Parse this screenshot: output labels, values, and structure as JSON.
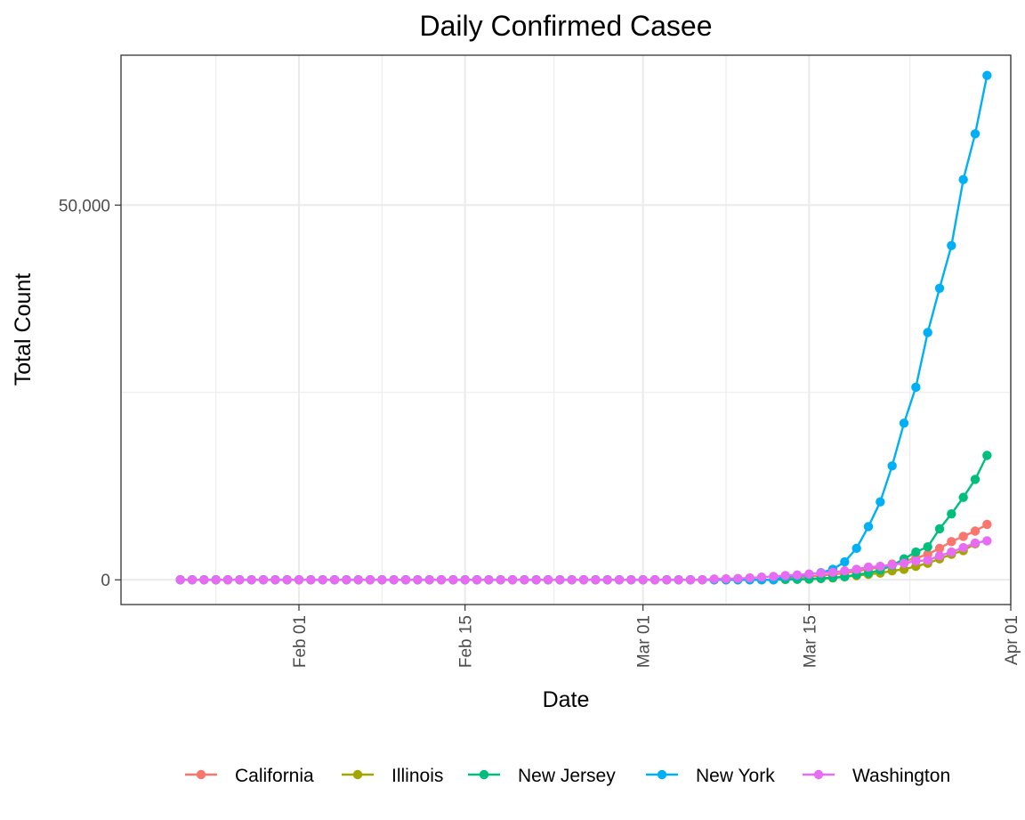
{
  "chart_data": {
    "type": "line",
    "title": "Daily Confirmed Casee",
    "xlabel": "Date",
    "ylabel": "Total Count",
    "x_axis": {
      "type": "date",
      "start": "2020-01-22",
      "end": "2020-03-29",
      "range": [
        "2020-01-17",
        "2020-04-01"
      ],
      "ticks": [
        {
          "date": "2020-02-01",
          "label": "Feb 01"
        },
        {
          "date": "2020-02-15",
          "label": "Feb 15"
        },
        {
          "date": "2020-03-01",
          "label": "Mar 01"
        },
        {
          "date": "2020-03-15",
          "label": "Mar 15"
        },
        {
          "date": "2020-04-01",
          "label": "Apr 01"
        }
      ]
    },
    "y_axis": {
      "range": [
        -3300,
        70000
      ],
      "ticks": [
        {
          "value": 0,
          "label": "0"
        },
        {
          "value": 50000,
          "label": "50,000"
        }
      ],
      "minor_gridlines": [
        25000
      ]
    },
    "grid": true,
    "legend_position": "bottom",
    "colors": {
      "California": "#F8766D",
      "Illinois": "#A3A500",
      "New Jersey": "#00BF7D",
      "New York": "#00B0F6",
      "Washington": "#E76BF3"
    },
    "series": [
      {
        "name": "California",
        "points": [
          [
            "2020-03-13",
            250
          ],
          [
            "2020-03-14",
            340
          ],
          [
            "2020-03-15",
            430
          ],
          [
            "2020-03-16",
            560
          ],
          [
            "2020-03-17",
            700
          ],
          [
            "2020-03-18",
            900
          ],
          [
            "2020-03-19",
            1150
          ],
          [
            "2020-03-20",
            1400
          ],
          [
            "2020-03-21",
            1700
          ],
          [
            "2020-03-22",
            2100
          ],
          [
            "2020-03-23",
            2500
          ],
          [
            "2020-03-24",
            2900
          ],
          [
            "2020-03-25",
            3400
          ],
          [
            "2020-03-26",
            4200
          ],
          [
            "2020-03-27",
            5100
          ],
          [
            "2020-03-28",
            5800
          ],
          [
            "2020-03-29",
            6500
          ],
          [
            "2020-03-30",
            7400
          ]
        ]
      },
      {
        "name": "Illinois",
        "points": [
          [
            "2020-03-13",
            50
          ],
          [
            "2020-03-14",
            70
          ],
          [
            "2020-03-15",
            90
          ],
          [
            "2020-03-16",
            160
          ],
          [
            "2020-03-17",
            240
          ],
          [
            "2020-03-18",
            400
          ],
          [
            "2020-03-19",
            560
          ],
          [
            "2020-03-20",
            720
          ],
          [
            "2020-03-21",
            900
          ],
          [
            "2020-03-22",
            1200
          ],
          [
            "2020-03-23",
            1400
          ],
          [
            "2020-03-24",
            1800
          ],
          [
            "2020-03-25",
            2200
          ],
          [
            "2020-03-26",
            2800
          ],
          [
            "2020-03-27",
            3400
          ],
          [
            "2020-03-28",
            3900
          ],
          [
            "2020-03-29",
            4800
          ]
        ]
      },
      {
        "name": "New Jersey",
        "points": [
          [
            "2020-03-13",
            50
          ],
          [
            "2020-03-14",
            70
          ],
          [
            "2020-03-15",
            100
          ],
          [
            "2020-03-16",
            180
          ],
          [
            "2020-03-17",
            300
          ],
          [
            "2020-03-18",
            400
          ],
          [
            "2020-03-19",
            700
          ],
          [
            "2020-03-20",
            900
          ],
          [
            "2020-03-21",
            1300
          ],
          [
            "2020-03-22",
            1900
          ],
          [
            "2020-03-23",
            2800
          ],
          [
            "2020-03-24",
            3700
          ],
          [
            "2020-03-25",
            4400
          ],
          [
            "2020-03-26",
            6800
          ],
          [
            "2020-03-27",
            8800
          ],
          [
            "2020-03-28",
            11000
          ],
          [
            "2020-03-29",
            13400
          ],
          [
            "2020-03-30",
            16600
          ]
        ]
      },
      {
        "name": "New York",
        "points": [
          [
            "2020-03-13",
            420
          ],
          [
            "2020-03-14",
            520
          ],
          [
            "2020-03-15",
            730
          ],
          [
            "2020-03-16",
            950
          ],
          [
            "2020-03-17",
            1400
          ],
          [
            "2020-03-18",
            2400
          ],
          [
            "2020-03-19",
            4200
          ],
          [
            "2020-03-20",
            7100
          ],
          [
            "2020-03-21",
            10400
          ],
          [
            "2020-03-22",
            15200
          ],
          [
            "2020-03-23",
            20900
          ],
          [
            "2020-03-24",
            25700
          ],
          [
            "2020-03-25",
            33000
          ],
          [
            "2020-03-26",
            38900
          ],
          [
            "2020-03-27",
            44600
          ],
          [
            "2020-03-28",
            53400
          ],
          [
            "2020-03-29",
            59500
          ],
          [
            "2020-03-30",
            67300
          ]
        ]
      },
      {
        "name": "Washington",
        "points": [
          [
            "2020-03-07",
            100
          ],
          [
            "2020-03-08",
            140
          ],
          [
            "2020-03-09",
            170
          ],
          [
            "2020-03-10",
            260
          ],
          [
            "2020-03-11",
            360
          ],
          [
            "2020-03-12",
            450
          ],
          [
            "2020-03-13",
            570
          ],
          [
            "2020-03-14",
            640
          ],
          [
            "2020-03-15",
            770
          ],
          [
            "2020-03-16",
            900
          ],
          [
            "2020-03-17",
            1000
          ],
          [
            "2020-03-18",
            1200
          ],
          [
            "2020-03-19",
            1400
          ],
          [
            "2020-03-20",
            1700
          ],
          [
            "2020-03-21",
            1800
          ],
          [
            "2020-03-22",
            2000
          ],
          [
            "2020-03-23",
            2200
          ],
          [
            "2020-03-24",
            2500
          ],
          [
            "2020-03-25",
            2600
          ],
          [
            "2020-03-26",
            3200
          ],
          [
            "2020-03-27",
            3700
          ],
          [
            "2020-03-28",
            4300
          ],
          [
            "2020-03-29",
            4900
          ],
          [
            "2020-03-30",
            5200
          ]
        ],
        "zero_before": "2020-03-07"
      }
    ],
    "legend": [
      "California",
      "Illinois",
      "New Jersey",
      "New York",
      "Washington"
    ]
  }
}
